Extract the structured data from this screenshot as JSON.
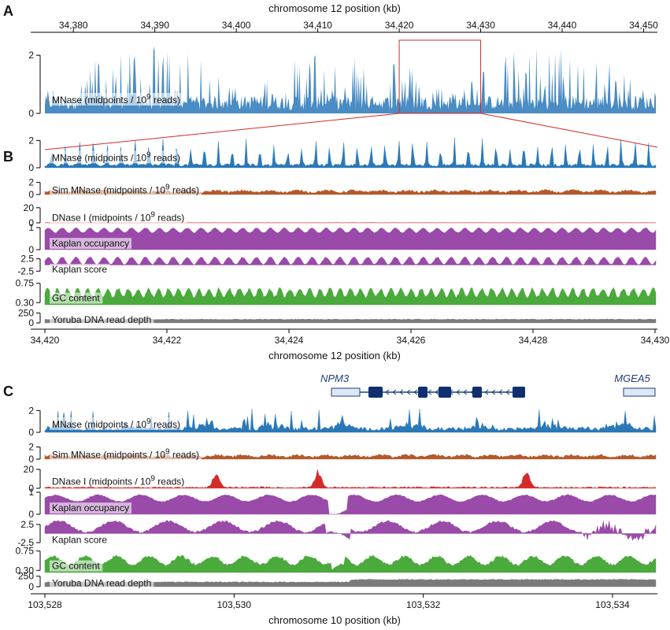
{
  "chart_data": [
    {
      "type": "area",
      "panel_letter": "A",
      "xlabel": "chromosome 12 position (kb)",
      "x_ticks": [
        "34,380",
        "34,390",
        "34,400",
        "34,410",
        "34,420",
        "34,430",
        "34,440",
        "34,450"
      ],
      "xlim_kb": [
        34376.5,
        34451.5
      ],
      "highlight_region_kb": [
        34420,
        34430
      ],
      "tracks": [
        {
          "label": "MNase (midpoints / 10",
          "label_sup": "9",
          "label_tail": " reads)",
          "yticks": [
            "0",
            "2"
          ],
          "ylim": [
            0,
            2.6
          ],
          "color": "#2a78b8",
          "mean": 0.35,
          "peak_max": 2.4
        }
      ]
    },
    {
      "type": "area",
      "panel_letter": "B",
      "xlabel": "chromosome 12 position (kb)",
      "x_ticks": [
        "34,420",
        "34,422",
        "34,424",
        "34,426",
        "34,428",
        "34,430"
      ],
      "xlim_kb": [
        34420,
        34430
      ],
      "tracks": [
        {
          "label": "MNase (midpoints / 10",
          "label_sup": "9",
          "label_tail": " reads)",
          "yticks": [
            "0",
            "2"
          ],
          "ylim": [
            0,
            2.6
          ],
          "color": "#2a78b8",
          "nucleosome_count": 44
        },
        {
          "label": "Sim MNase (midpoints / 10",
          "label_sup": "9",
          "label_tail": " reads)",
          "yticks": [
            "0",
            "2"
          ],
          "ylim": [
            0,
            2.6
          ],
          "color": "#b5592a",
          "mean": 0.5
        },
        {
          "label": "DNase I (midpoints / 10",
          "label_sup": "9",
          "label_tail": " reads)",
          "yticks": [
            "0",
            "20"
          ],
          "ylim": [
            0,
            25
          ],
          "color": "#d42a2a",
          "mean": 0.5
        },
        {
          "label": "Kaplan occupancy",
          "yticks": [
            "0",
            "1"
          ],
          "ylim": [
            0,
            1
          ],
          "color": "#9a4aa8",
          "mean": 0.78
        },
        {
          "label": "Kaplan score",
          "yticks": [
            "-2.5",
            "2.5"
          ],
          "ylim": [
            -4,
            4
          ],
          "color": "#9a4aa8",
          "mean": 0.8
        },
        {
          "label": "GC content",
          "yticks": [
            "0.30",
            "0.75"
          ],
          "ylim": [
            0.25,
            0.8
          ],
          "color": "#4aaa3c",
          "mean": 0.5
        },
        {
          "label": "Yoruba DNA read depth",
          "yticks": [
            "0",
            "250"
          ],
          "ylim": [
            0,
            300
          ],
          "color": "#7a7a7a",
          "mean": 90
        }
      ]
    },
    {
      "type": "area",
      "panel_letter": "C",
      "xlabel": "chromosome 10 position (kb)",
      "x_ticks": [
        "103,528",
        "103,530",
        "103,532",
        "103,534"
      ],
      "xlim_kb": [
        103528,
        103534.6
      ],
      "genes": [
        {
          "name": "NPM3",
          "strand": "-",
          "start_kb": 103531.1,
          "end_kb": 103532.35,
          "exons_kb": [
            [
              103531.1,
              103531.25
            ],
            [
              103531.6,
              103531.7
            ],
            [
              103532.0,
              103532.09
            ],
            [
              103532.2,
              103532.35
            ]
          ]
        },
        {
          "name": "MGEA5",
          "strand": "-",
          "start_kb": 103534.35,
          "end_kb": 103534.6,
          "exons_kb": []
        }
      ],
      "tracks": [
        {
          "label": "MNase (midpoints / 10",
          "label_sup": "9",
          "label_tail": " reads)",
          "yticks": [
            "0",
            "2"
          ],
          "ylim": [
            0,
            2.6
          ],
          "color": "#2a78b8",
          "mean": 0.4
        },
        {
          "label": "Sim MNase (midpoints / 10",
          "label_sup": "9",
          "label_tail": " reads)",
          "yticks": [
            "0",
            "2"
          ],
          "ylim": [
            0,
            2.6
          ],
          "color": "#b5592a",
          "mean": 0.5
        },
        {
          "label": "DNase I (midpoints / 10",
          "label_sup": "9",
          "label_tail": " reads)",
          "yticks": [
            "0",
            "20"
          ],
          "ylim": [
            0,
            25
          ],
          "color": "#d42a2a",
          "peaks_kb": [
            103529.85,
            103530.95,
            103533.2
          ]
        },
        {
          "label": "Kaplan occupancy",
          "yticks": [
            "0",
            "1"
          ],
          "ylim": [
            0,
            1
          ],
          "color": "#9a4aa8",
          "mean": 0.75
        },
        {
          "label": "Kaplan score",
          "yticks": [
            "-2.5",
            "2.5"
          ],
          "ylim": [
            -4,
            4
          ],
          "color": "#9a4aa8",
          "mean": 0.8
        },
        {
          "label": "GC content",
          "yticks": [
            "0.30",
            "0.75"
          ],
          "ylim": [
            0.25,
            0.8
          ],
          "color": "#4aaa3c",
          "mean": 0.5
        },
        {
          "label": "Yoruba DNA read depth",
          "yticks": [
            "0",
            "250"
          ],
          "ylim": [
            0,
            300
          ],
          "color": "#7a7a7a",
          "mean": 110
        }
      ]
    }
  ]
}
